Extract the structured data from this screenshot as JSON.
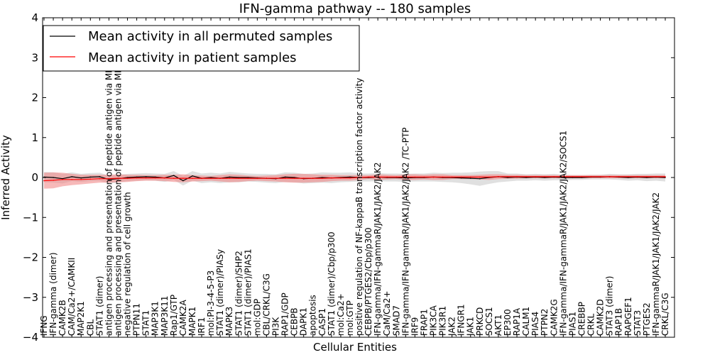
{
  "chart_data": {
    "type": "line",
    "title": "IFN-gamma pathway -- 180 samples",
    "xlabel": "Cellular Entities",
    "ylabel": "Inferred Activity",
    "ylim": [
      -4,
      4
    ],
    "yticks": [
      -4,
      -3,
      -2,
      -1,
      0,
      1,
      2,
      3,
      4
    ],
    "ytick_labels": [
      "−4",
      "−3",
      "−2",
      "−1",
      "0",
      "1",
      "2",
      "3",
      "4"
    ],
    "legend_position": "top-left",
    "categories": [
      "IFNG",
      "IFN-gamma (dimer)",
      "CAMK2B",
      "CAM/Ca2+/CAMKII",
      "MAP2K1",
      "CBL",
      "STAT1 (dimer)",
      "antigen processing and presentation of peptide antigen via MHC class I",
      "antigen processing and presentation of peptide antigen via MHC class II",
      "negative regulation of cell growth",
      "PTPN11",
      "STAT1",
      "MAP3K1",
      "MAP3K11",
      "Rap1/GTP",
      "CAMK2A",
      "MAPK1",
      "IRF1",
      "mol:PI-3-4-5-P3",
      "STAT1 (dimer)/PIASy",
      "MAPK3",
      "STAT1 (dimer)/SHP2",
      "STAT1 (dimer)/PIAS1",
      "mol:GDP",
      "CBL/CRKL/C3G",
      "PI3K",
      "RAP1/GDP",
      "CEBPB",
      "DAPK1",
      "apoptosis",
      "CASP1",
      "STAT1 (dimer)/Cbp/p300",
      "mol:Ca2+",
      "mol:GTP",
      "positive regulation of NF-kappaB transcription factor activity",
      "CEBPB/PTGES2/Cbp/p300",
      "IFN-gamma/IFN-gammaR/JAK1/JAK2/JAK2",
      "CaM/Ca2+",
      "SMAD7",
      "IFN-gamma/IFN-gammaR/JAK1/JAK2/JAK2  /TC-PTP",
      "IRF9",
      "FRAP1",
      "PIK3CA",
      "PIK3R1",
      "JAK2",
      "IFNGR1",
      "JAK1",
      "PRKCD",
      "SOCS1",
      "AKT1",
      "EP300",
      "RAP1A",
      "CALM1",
      "PIAS4",
      "PTPN2",
      "CAMK2G",
      "IFN-gamma/IFN-gammaR/JAK1/JAK2/JAK2/SOCS1",
      "PIAS1",
      "CREBBP",
      "CRKL",
      "CAMK2D",
      "STAT3 (dimer)",
      "RAP1B",
      "RAPGEF1",
      "STAT3",
      "PTGES2",
      "IFN-gammaR/JAK1/JAK1/JAK2/JAK2",
      "CRKL/C3G"
    ],
    "series": [
      {
        "name": "Mean activity in all permuted samples",
        "color": "#000000",
        "band_color": "#bbbbbb",
        "values": [
          0.01,
          0.0,
          -0.03,
          0.02,
          -0.01,
          0.01,
          0.02,
          -0.05,
          -0.03,
          0.0,
          0.01,
          0.02,
          0.01,
          -0.01,
          0.05,
          -0.08,
          0.04,
          -0.02,
          0.0,
          -0.02,
          0.01,
          0.0,
          0.0,
          -0.01,
          -0.02,
          -0.03,
          0.01,
          0.0,
          -0.03,
          -0.02,
          0.0,
          -0.01,
          0.0,
          0.01,
          0.0,
          0.0,
          0.01,
          0.0,
          0.0,
          -0.01,
          0.0,
          0.0,
          0.01,
          0.0,
          0.0,
          -0.01,
          -0.02,
          -0.03,
          0.0,
          0.02,
          0.0,
          0.01,
          0.0,
          0.01,
          0.0,
          0.01,
          0.0,
          0.0,
          0.0,
          0.01,
          0.01,
          0.02,
          0.01,
          0.0,
          0.01,
          0.0,
          0.01,
          0.0
        ],
        "spread": [
          0.13,
          0.13,
          0.12,
          0.11,
          0.1,
          0.1,
          0.1,
          0.1,
          0.1,
          0.09,
          0.09,
          0.09,
          0.09,
          0.1,
          0.11,
          0.12,
          0.12,
          0.12,
          0.12,
          0.12,
          0.13,
          0.12,
          0.1,
          0.1,
          0.11,
          0.11,
          0.12,
          0.12,
          0.12,
          0.12,
          0.13,
          0.13,
          0.12,
          0.12,
          0.1,
          0.1,
          0.1,
          0.1,
          0.1,
          0.1,
          0.1,
          0.1,
          0.11,
          0.11,
          0.12,
          0.13,
          0.15,
          0.18,
          0.16,
          0.14,
          0.1,
          0.09,
          0.08,
          0.08,
          0.08,
          0.08,
          0.07,
          0.06,
          0.06,
          0.06,
          0.06,
          0.07,
          0.07,
          0.08,
          0.08,
          0.09,
          0.09,
          0.1
        ]
      },
      {
        "name": "Mean activity in patient samples",
        "color": "#ff0000",
        "band_color": "#f08080",
        "values": [
          -0.08,
          -0.07,
          -0.05,
          -0.05,
          -0.05,
          -0.04,
          -0.03,
          -0.03,
          -0.02,
          -0.02,
          -0.01,
          -0.01,
          -0.01,
          -0.01,
          -0.02,
          -0.02,
          -0.02,
          -0.02,
          -0.02,
          -0.02,
          -0.02,
          -0.02,
          -0.02,
          -0.02,
          -0.02,
          -0.02,
          -0.02,
          -0.02,
          -0.02,
          -0.02,
          -0.02,
          -0.01,
          -0.01,
          -0.01,
          0.0,
          0.01,
          0.01,
          0.01,
          0.01,
          0.01,
          0.01,
          0.01,
          0.01,
          0.01,
          0.01,
          0.01,
          0.01,
          0.01,
          0.01,
          0.02,
          0.02,
          0.02,
          0.02,
          0.02,
          0.02,
          0.02,
          0.02,
          0.02,
          0.02,
          0.02,
          0.02,
          0.02,
          0.02,
          0.02,
          0.02,
          0.02,
          0.02,
          0.02
        ],
        "spread": [
          0.2,
          0.2,
          0.17,
          0.14,
          0.12,
          0.11,
          0.1,
          0.1,
          0.1,
          0.09,
          0.08,
          0.07,
          0.07,
          0.08,
          0.09,
          0.1,
          0.08,
          0.07,
          0.06,
          0.08,
          0.1,
          0.09,
          0.07,
          0.06,
          0.07,
          0.08,
          0.1,
          0.11,
          0.11,
          0.1,
          0.09,
          0.08,
          0.07,
          0.07,
          0.06,
          0.05,
          0.07,
          0.06,
          0.05,
          0.07,
          0.07,
          0.06,
          0.07,
          0.07,
          0.05,
          0.05,
          0.05,
          0.06,
          0.07,
          0.06,
          0.05,
          0.05,
          0.04,
          0.04,
          0.04,
          0.04,
          0.04,
          0.04,
          0.04,
          0.04,
          0.04,
          0.04,
          0.04,
          0.04,
          0.04,
          0.04,
          0.04,
          0.04
        ]
      }
    ]
  }
}
